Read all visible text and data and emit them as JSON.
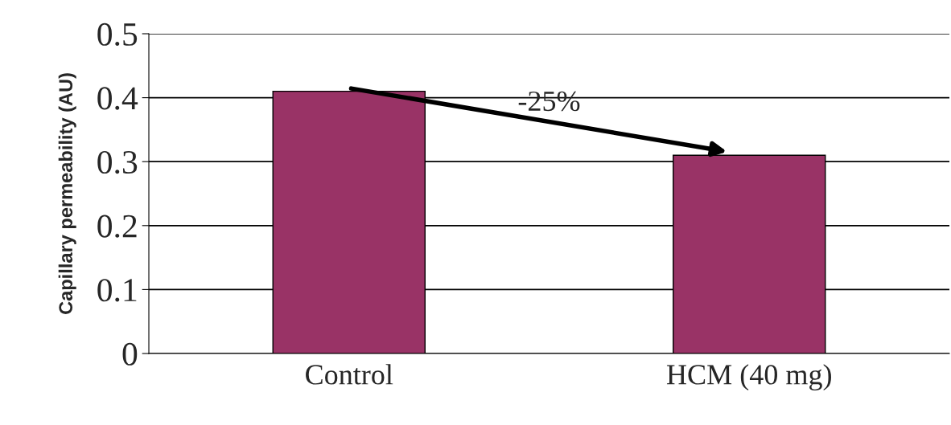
{
  "chart_data": {
    "type": "bar",
    "ylabel": "Capillary permeability (AU)",
    "categories": [
      "Control",
      "HCM (40 mg)"
    ],
    "values": [
      0.41,
      0.31
    ],
    "color": "#993366",
    "ylim": [
      0,
      0.5
    ],
    "yticks": [
      0,
      0.1,
      0.2,
      0.3,
      0.4,
      0.5
    ],
    "grid": "y",
    "annotations": [
      "-25%"
    ]
  }
}
